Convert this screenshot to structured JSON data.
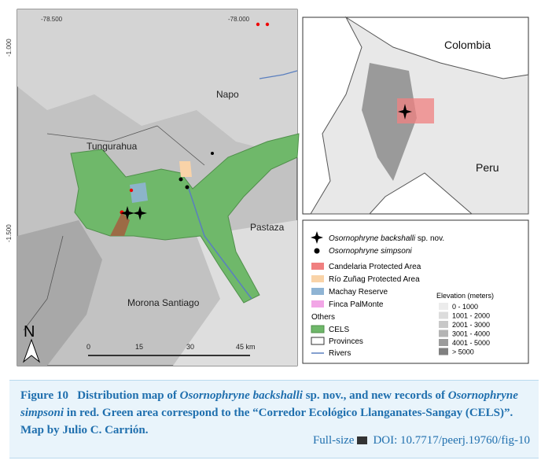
{
  "map": {
    "coordinates": [
      "-78.500",
      "-78.000",
      "-1.000",
      "-1.500"
    ],
    "regions": [
      "Napo",
      "Tungurahua",
      "Pastaza",
      "Morona Santiago"
    ],
    "north": "N",
    "scale": [
      "0",
      "15",
      "30",
      "45 km"
    ],
    "inset_labels": [
      "Colombia",
      "Peru"
    ],
    "legend": {
      "species": [
        {
          "name": "Osornophryne backshalli",
          "suffix": " sp. nov."
        },
        {
          "name": "Osornophryne simpsoni"
        }
      ],
      "areas": [
        "Candelaria Protected Area",
        "Río Zuñag Protected Area",
        "Machay Reserve",
        "Finca PalMonte"
      ],
      "others_title": "Others",
      "others": [
        "CELS",
        "Provinces",
        "Rivers"
      ],
      "elevation_title": "Elevation (meters)",
      "elevation": [
        "0 - 1000",
        "1001 - 2000",
        "2001 - 3000",
        "3001 - 4000",
        "4001 - 5000",
        ">  5000"
      ]
    }
  },
  "caption": {
    "label": "Figure 10",
    "parts": [
      "Distribution map of ",
      "Osornophryne backshalli",
      " sp. nov., and new records of ",
      "Osornophryne simpsoni",
      " in red. Green area correspond to the “Corredor Ecológico Llanganates-Sangay (CELS)”.  Map by Julio C. Carrión."
    ]
  },
  "links": {
    "full_size": "Full-size",
    "doi": "DOI: 10.7717/peerj.19760/fig-10"
  }
}
